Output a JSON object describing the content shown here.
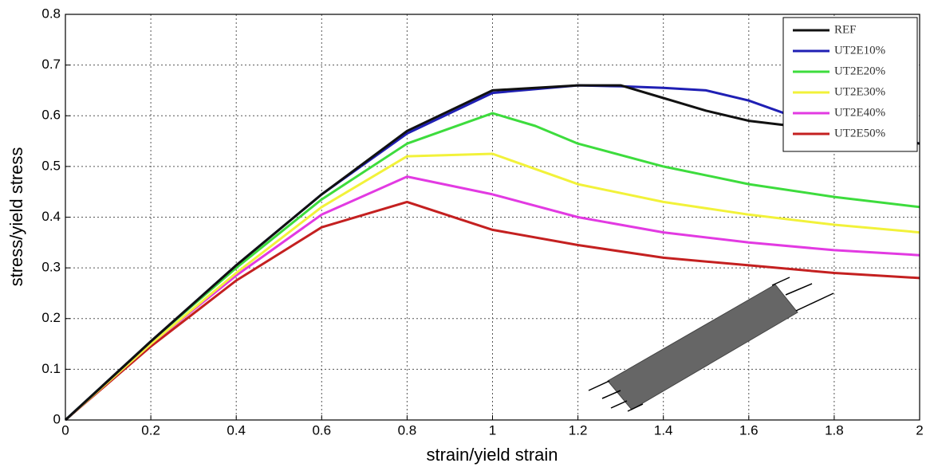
{
  "chart_data": {
    "type": "line",
    "xlabel": "strain/yield strain",
    "ylabel": "stress/yield stress",
    "xlim": [
      0,
      2
    ],
    "ylim": [
      0,
      0.8
    ],
    "xticks": [
      0,
      0.2,
      0.4,
      0.6,
      0.8,
      1,
      1.2,
      1.4,
      1.6,
      1.8,
      2
    ],
    "yticks": [
      0,
      0.1,
      0.2,
      0.3,
      0.4,
      0.5,
      0.6,
      0.7,
      0.8
    ],
    "grid": true,
    "legend": "upper right",
    "series": [
      {
        "name": "REF",
        "color": "#111111",
        "x": [
          0,
          0.2,
          0.4,
          0.6,
          0.8,
          1,
          1.2,
          1.3,
          1.4,
          1.5,
          1.6,
          1.7,
          1.8,
          1.9,
          2
        ],
        "values": [
          0,
          0.155,
          0.305,
          0.445,
          0.57,
          0.65,
          0.66,
          0.66,
          0.635,
          0.61,
          0.59,
          0.58,
          0.57,
          0.56,
          0.545
        ]
      },
      {
        "name": "UT2E10%",
        "color": "#1f1fb4",
        "x": [
          0,
          0.2,
          0.4,
          0.6,
          0.8,
          1,
          1.2,
          1.3,
          1.4,
          1.5,
          1.6,
          1.7,
          1.8,
          1.9,
          2
        ],
        "values": [
          0,
          0.155,
          0.305,
          0.445,
          0.565,
          0.645,
          0.66,
          0.658,
          0.655,
          0.65,
          0.63,
          0.6,
          0.58,
          0.565,
          0.545
        ]
      },
      {
        "name": "UT2E20%",
        "color": "#3ddc3d",
        "x": [
          0,
          0.2,
          0.4,
          0.6,
          0.8,
          1,
          1.1,
          1.2,
          1.4,
          1.6,
          1.8,
          2
        ],
        "values": [
          0,
          0.155,
          0.3,
          0.435,
          0.545,
          0.605,
          0.58,
          0.545,
          0.5,
          0.465,
          0.44,
          0.42
        ]
      },
      {
        "name": "UT2E30%",
        "color": "#f2f23a",
        "x": [
          0,
          0.2,
          0.4,
          0.6,
          0.8,
          1,
          1.2,
          1.4,
          1.6,
          1.8,
          2
        ],
        "values": [
          0,
          0.15,
          0.29,
          0.42,
          0.52,
          0.525,
          0.465,
          0.43,
          0.405,
          0.385,
          0.37
        ]
      },
      {
        "name": "UT2E40%",
        "color": "#e23ae2",
        "x": [
          0,
          0.2,
          0.4,
          0.6,
          0.8,
          1,
          1.2,
          1.4,
          1.6,
          1.8,
          2
        ],
        "values": [
          0,
          0.15,
          0.285,
          0.405,
          0.48,
          0.445,
          0.4,
          0.37,
          0.35,
          0.335,
          0.325
        ]
      },
      {
        "name": "UT2E50%",
        "color": "#c42020",
        "x": [
          0,
          0.2,
          0.4,
          0.6,
          0.8,
          1,
          1.2,
          1.4,
          1.6,
          1.8,
          2
        ],
        "values": [
          0,
          0.145,
          0.275,
          0.38,
          0.43,
          0.375,
          0.345,
          0.32,
          0.305,
          0.29,
          0.28
        ]
      }
    ]
  }
}
